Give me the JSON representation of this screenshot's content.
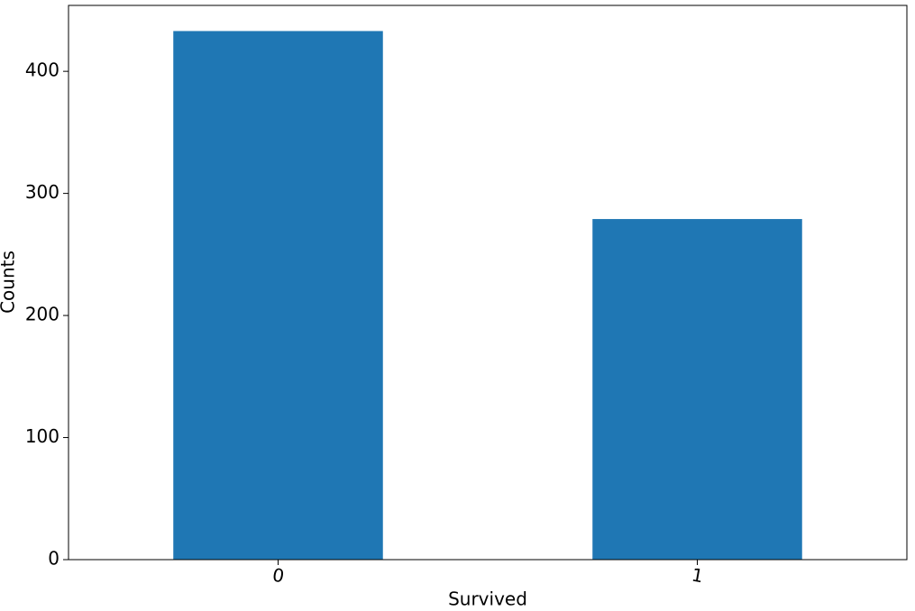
{
  "chart_data": {
    "type": "bar",
    "x_label": "Survived",
    "y_label": "Counts",
    "categories": [
      "0",
      "1"
    ],
    "values": [
      433,
      279
    ],
    "color": "#1f77b4",
    "ylim": [
      0,
      454
    ],
    "yticks": [
      0,
      100,
      200,
      300,
      400
    ],
    "grid": false
  }
}
